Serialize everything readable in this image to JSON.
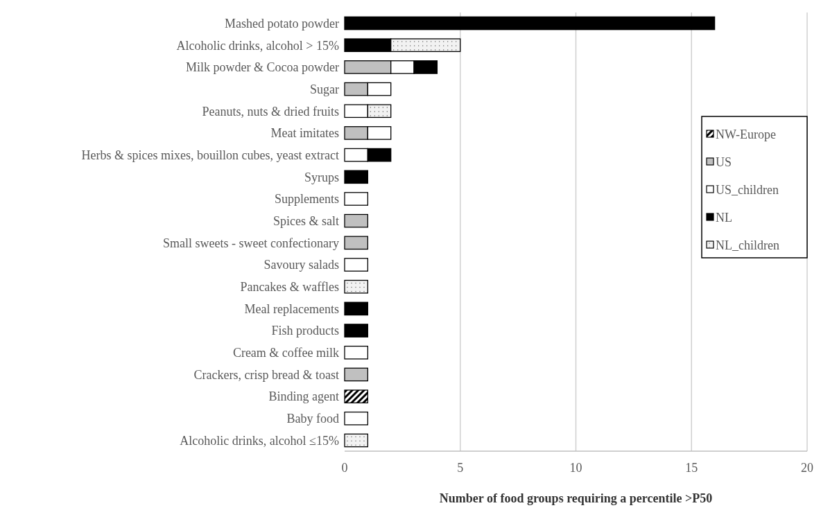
{
  "chart_data": {
    "type": "bar",
    "orientation": "horizontal",
    "stacked": true,
    "xlabel": "Number of food groups requiring a percentile >P50",
    "categories": [
      "Mashed potato powder",
      "Alcoholic drinks, alcohol > 15%",
      "Milk powder & Cocoa powder",
      "Sugar",
      "Peanuts, nuts & dried fruits",
      "Meat imitates",
      "Herbs & spices mixes, bouillon cubes, yeast extract",
      "Syrups",
      "Supplements",
      "Spices & salt",
      "Small sweets - sweet confectionary",
      "Savoury salads",
      "Pancakes & waffles",
      "Meal replacements",
      "Fish products",
      "Cream & coffee milk",
      "Crackers, crisp bread & toast",
      "Binding agent",
      "Baby food",
      "Alcoholic drinks, alcohol ≤15%"
    ],
    "series": [
      {
        "name": "NW-Europe",
        "color": "#000000",
        "values": [
          null,
          null,
          null,
          null,
          null,
          null,
          null,
          null,
          null,
          null,
          null,
          null,
          null,
          null,
          null,
          null,
          null,
          1,
          null,
          null
        ]
      },
      {
        "name": "US",
        "color": "#c0c0c0",
        "values": [
          null,
          null,
          2,
          1,
          null,
          1,
          null,
          null,
          null,
          1,
          1,
          null,
          null,
          null,
          null,
          null,
          1,
          null,
          null,
          null
        ]
      },
      {
        "name": "US_children",
        "color": "#ffffff",
        "values": [
          null,
          null,
          1,
          1,
          1,
          1,
          1,
          null,
          1,
          null,
          null,
          1,
          null,
          null,
          null,
          1,
          null,
          null,
          1,
          null
        ]
      },
      {
        "name": "NL",
        "color": "#000000",
        "values": [
          16,
          2,
          1,
          null,
          null,
          null,
          1,
          1,
          null,
          null,
          null,
          null,
          null,
          1,
          1,
          null,
          null,
          null,
          null,
          null
        ]
      },
      {
        "name": "NL_children",
        "color": "#f2f2f2",
        "values": [
          null,
          3,
          null,
          null,
          1,
          null,
          null,
          null,
          null,
          null,
          null,
          null,
          1,
          null,
          null,
          null,
          null,
          null,
          null,
          1
        ]
      }
    ],
    "xlim": [
      0,
      20
    ],
    "xticks": [
      0,
      5,
      10,
      15,
      20
    ],
    "grid": "x",
    "legend": "right"
  }
}
